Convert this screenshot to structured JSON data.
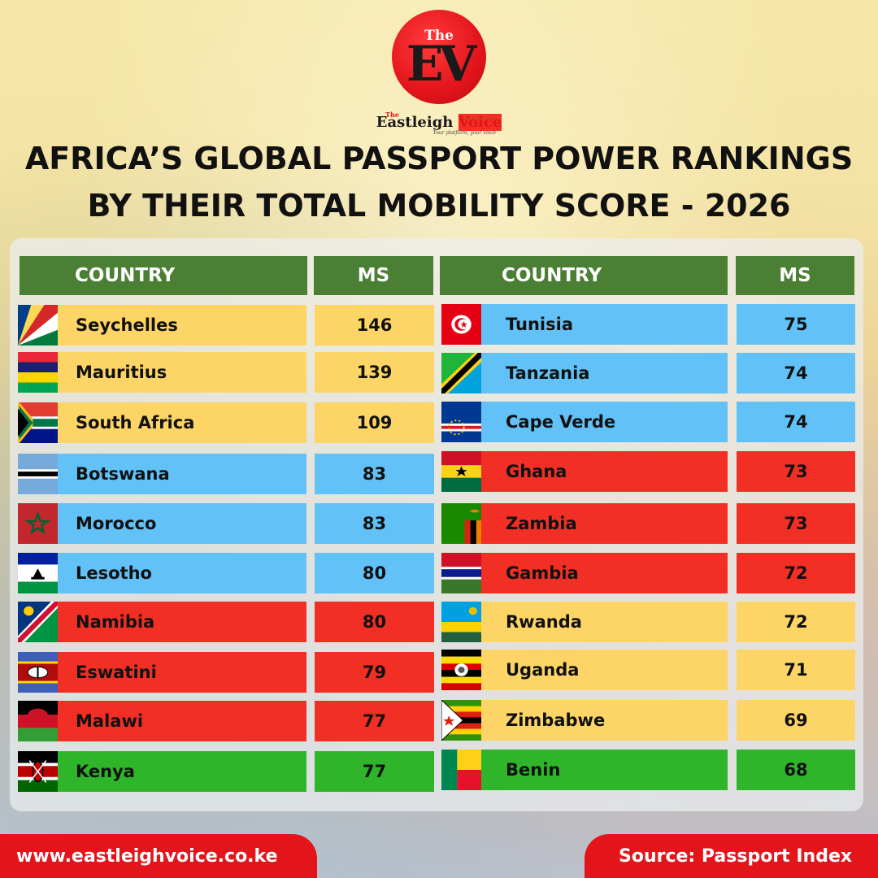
{
  "logo": {
    "the": "The",
    "monogram": "EV",
    "small_the": "The",
    "name_part1": "Eastleigh",
    "name_part2": "Voice",
    "tagline": "Your platform, your voice"
  },
  "headline": {
    "line1": "AFRICA’S GLOBAL PASSPORT POWER RANKINGS",
    "line2": "BY THEIR TOTAL MOBILITY SCORE - 2026"
  },
  "table": {
    "header_country": "COUNTRY",
    "header_ms": "MS",
    "colors": {
      "yellow": "#fdd466",
      "blue": "#62c1f6",
      "red": "#f22f24",
      "green": "#2fb52a",
      "header": "#4a7f34"
    },
    "rows": [
      {
        "country": "Seychelles",
        "ms": "146",
        "color": "yellow",
        "flag": "seychelles-flag-icon"
      },
      {
        "country": "Mauritius",
        "ms": "139",
        "color": "yellow",
        "flag": "mauritius-flag-icon"
      },
      {
        "country": "South Africa",
        "ms": "109",
        "color": "yellow",
        "flag": "south-africa-flag-icon"
      },
      {
        "country": "Botswana",
        "ms": "83",
        "color": "blue",
        "flag": "botswana-flag-icon"
      },
      {
        "country": "Morocco",
        "ms": "83",
        "color": "blue",
        "flag": "morocco-flag-icon"
      },
      {
        "country": "Lesotho",
        "ms": "80",
        "color": "blue",
        "flag": "lesotho-flag-icon"
      },
      {
        "country": "Namibia",
        "ms": "80",
        "color": "red",
        "flag": "namibia-flag-icon"
      },
      {
        "country": "Eswatini",
        "ms": "79",
        "color": "red",
        "flag": "eswatini-flag-icon"
      },
      {
        "country": "Malawi",
        "ms": "77",
        "color": "red",
        "flag": "malawi-flag-icon"
      },
      {
        "country": "Kenya",
        "ms": "77",
        "color": "green",
        "flag": "kenya-flag-icon"
      },
      {
        "country": "Tunisia",
        "ms": "75",
        "color": "blue",
        "flag": "tunisia-flag-icon"
      },
      {
        "country": "Tanzania",
        "ms": "74",
        "color": "blue",
        "flag": "tanzania-flag-icon"
      },
      {
        "country": "Cape Verde",
        "ms": "74",
        "color": "blue",
        "flag": "cape-verde-flag-icon"
      },
      {
        "country": "Ghana",
        "ms": "73",
        "color": "red",
        "flag": "ghana-flag-icon"
      },
      {
        "country": "Zambia",
        "ms": "73",
        "color": "red",
        "flag": "zambia-flag-icon"
      },
      {
        "country": "Gambia",
        "ms": "72",
        "color": "red",
        "flag": "gambia-flag-icon"
      },
      {
        "country": "Rwanda",
        "ms": "72",
        "color": "yellow",
        "flag": "rwanda-flag-icon"
      },
      {
        "country": "Uganda",
        "ms": "71",
        "color": "yellow",
        "flag": "uganda-flag-icon"
      },
      {
        "country": "Zimbabwe",
        "ms": "69",
        "color": "yellow",
        "flag": "zimbabwe-flag-icon"
      },
      {
        "country": "Benin",
        "ms": "68",
        "color": "green",
        "flag": "benin-flag-icon"
      }
    ]
  },
  "footer": {
    "website": "www.eastleighvoice.co.ke",
    "source": "Source: Passport Index"
  }
}
